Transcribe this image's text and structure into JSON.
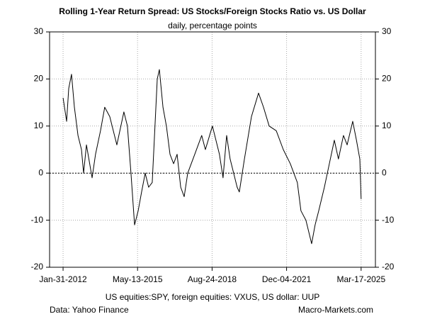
{
  "chart_data": {
    "type": "line",
    "title": "Rolling 1-Year Return Spread: US Stocks/Foreign Stocks Ratio vs. US Dollar",
    "subtitle": "daily, percentage points",
    "x_label": "US equities:SPY, foreign equities: VXUS, US dollar: UUP",
    "source": "Data: Yahoo Finance",
    "credit": "Macro-Markets.com",
    "color": "#000000",
    "grid": true,
    "reference_line": 0,
    "x": [
      "2012-01-31",
      "2012-03-28",
      "2012-05-01",
      "2012-06-15",
      "2012-07-31",
      "2012-09-27",
      "2012-11-22",
      "2012-12-26",
      "2013-02-10",
      "2013-05-12",
      "2013-07-06",
      "2013-09-24",
      "2013-12-01",
      "2014-02-20",
      "2014-06-14",
      "2014-10-05",
      "2014-12-01",
      "2015-01-27",
      "2015-03-26",
      "2015-05-23",
      "2015-07-17",
      "2015-09-13",
      "2015-11-07",
      "2016-01-04",
      "2016-03-25",
      "2016-04-28",
      "2016-06-25",
      "2016-08-19",
      "2016-10-16",
      "2016-12-13",
      "2017-02-07",
      "2017-04-06",
      "2017-06-01",
      "2017-07-28",
      "2017-11-18",
      "2018-03-10",
      "2018-05-08",
      "2018-08-29",
      "2018-12-20",
      "2019-02-16",
      "2019-04-15",
      "2019-06-10",
      "2019-10-01",
      "2019-11-05",
      "2020-01-26",
      "2020-05-18",
      "2020-09-09",
      "2020-11-28",
      "2021-02-27",
      "2021-06-21",
      "2021-10-12",
      "2022-02-02",
      "2022-05-26",
      "2022-07-23",
      "2022-10-11",
      "2023-01-11",
      "2023-03-08",
      "2023-05-05",
      "2023-08-04",
      "2023-10-23",
      "2024-01-11",
      "2024-03-17",
      "2024-06-06",
      "2024-08-04",
      "2024-11-02",
      "2025-01-01",
      "2025-02-24",
      "2025-03-17"
    ],
    "values": [
      16,
      11,
      18,
      21,
      14,
      8,
      5,
      0,
      6,
      -1,
      4,
      9,
      14,
      12,
      6,
      13,
      10,
      0,
      -11,
      -8,
      -4,
      0,
      -3,
      -2,
      20,
      22,
      14,
      10,
      4,
      2,
      4,
      -3,
      -5,
      0,
      4,
      8,
      5,
      10,
      4,
      -1,
      8,
      3,
      -3,
      -4,
      3,
      12,
      17,
      14,
      10,
      9,
      5,
      2,
      -2,
      -8,
      -10,
      -15,
      -11,
      -8,
      -3,
      2,
      7,
      3,
      8,
      6,
      11,
      7,
      3,
      -5.5
    ],
    "xlim": [
      "2011-06-28",
      "2025-11-02"
    ],
    "xticks": [
      {
        "value": "2012-01-31",
        "label": "Jan-31-2012"
      },
      {
        "value": "2015-05-13",
        "label": "May-13-2015"
      },
      {
        "value": "2018-08-24",
        "label": "Aug-24-2018"
      },
      {
        "value": "2021-12-04",
        "label": "Dec-04-2021"
      },
      {
        "value": "2025-03-17",
        "label": "Mar-17-2025"
      }
    ],
    "ylim": [
      -20,
      30
    ],
    "yticks": [
      -20,
      -10,
      0,
      10,
      20,
      30
    ]
  }
}
